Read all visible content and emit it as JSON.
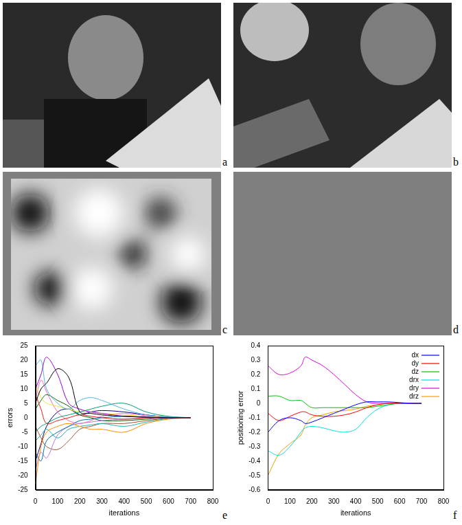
{
  "panels": [
    {
      "panel": "a"
    },
    {
      "panel": "b"
    },
    {
      "panel": "c"
    },
    {
      "panel": "d"
    }
  ],
  "chart_data": [
    {
      "panel": "e",
      "type": "line",
      "x_label": "iterations",
      "y_label": "errors",
      "x": [
        0,
        25,
        50,
        100,
        150,
        200,
        250,
        300,
        400,
        500,
        600,
        700
      ],
      "series": [
        {
          "color": "#000000",
          "values": [
            5,
            10,
            12,
            17,
            14,
            2,
            1.5,
            1,
            0.5,
            0.2,
            0,
            0
          ]
        },
        {
          "color": "#9400d3",
          "values": [
            10,
            15,
            21,
            15,
            5,
            3,
            2,
            1.5,
            0.5,
            0.2,
            0,
            0
          ]
        },
        {
          "color": "#ff8c00",
          "values": [
            -23,
            -10,
            -5,
            -3,
            -2,
            -3,
            -4,
            -4,
            -5,
            -2,
            -0.5,
            0
          ]
        },
        {
          "color": "#56b4e9",
          "values": [
            18,
            20,
            10,
            5,
            3,
            6,
            7,
            6,
            3,
            1,
            0.3,
            0
          ]
        },
        {
          "color": "#0072b2",
          "values": [
            -12,
            -15,
            -8,
            -5,
            -3,
            -1,
            -0.5,
            0,
            0.5,
            0.2,
            0,
            0
          ]
        },
        {
          "color": "#009e73",
          "values": [
            -5,
            -3,
            -2,
            0,
            1,
            2,
            3,
            4,
            5,
            2,
            0.5,
            0
          ]
        },
        {
          "color": "#e51e10",
          "values": [
            8,
            3,
            -2,
            -1,
            0,
            1,
            0.5,
            0,
            -0.5,
            0,
            0,
            0
          ]
        },
        {
          "color": "#b07cd8",
          "values": [
            -18,
            -12,
            -14,
            -6,
            -3,
            -2,
            -1.5,
            -1,
            -0.5,
            -0.2,
            0,
            0
          ]
        },
        {
          "color": "#f0e442",
          "values": [
            12,
            7,
            5,
            4,
            3,
            2,
            2,
            1.5,
            1,
            0.5,
            0,
            0
          ]
        },
        {
          "color": "#20b2aa",
          "values": [
            -8,
            -6,
            -4,
            -7,
            -4,
            -3,
            -2.5,
            -2,
            -3,
            -1.5,
            -0.3,
            0
          ]
        },
        {
          "color": "#006400",
          "values": [
            3,
            6,
            8,
            6,
            4,
            1,
            0,
            -1,
            -1,
            -0.5,
            0,
            0
          ]
        },
        {
          "color": "#a0522d",
          "values": [
            -3,
            -7,
            -10,
            -11,
            -8,
            -4,
            -3,
            -2,
            -2,
            -1,
            -0.2,
            0
          ]
        },
        {
          "color": "#ff69b4",
          "values": [
            6,
            13,
            9,
            2,
            -1,
            -2,
            -1,
            0.5,
            1.5,
            0.7,
            0.1,
            0
          ]
        },
        {
          "color": "#000080",
          "values": [
            -15,
            -9,
            -3,
            2,
            3,
            1,
            2,
            2.5,
            2,
            1,
            0.2,
            0
          ]
        }
      ],
      "xlim": [
        0,
        800
      ],
      "xticks": [
        0,
        100,
        200,
        300,
        400,
        500,
        600,
        700,
        800
      ],
      "ylim": [
        -25,
        25
      ],
      "yticks": [
        -25,
        -20,
        -15,
        -10,
        -5,
        0,
        5,
        10,
        15,
        20,
        25
      ],
      "grid": false
    },
    {
      "panel": "f",
      "type": "line",
      "x_label": "iterations",
      "y_label": "positioning error",
      "x": [
        0,
        50,
        100,
        150,
        170,
        200,
        250,
        300,
        350,
        400,
        450,
        500,
        550,
        600,
        650,
        700
      ],
      "series": [
        {
          "name": "dx",
          "color": "#0000ff",
          "values": [
            -0.2,
            -0.12,
            -0.1,
            -0.12,
            -0.14,
            -0.13,
            -0.1,
            -0.07,
            -0.04,
            -0.01,
            0.01,
            0.01,
            0.01,
            0.005,
            0,
            0
          ]
        },
        {
          "name": "dy",
          "color": "#ff0000",
          "values": [
            -0.07,
            -0.12,
            -0.09,
            -0.06,
            -0.06,
            -0.08,
            -0.09,
            -0.09,
            -0.08,
            -0.06,
            -0.03,
            -0.01,
            0,
            0,
            0,
            0
          ]
        },
        {
          "name": "dz",
          "color": "#00c000",
          "values": [
            0.05,
            0.05,
            0.02,
            0.02,
            0,
            -0.03,
            -0.03,
            -0.03,
            -0.03,
            -0.03,
            -0.03,
            -0.02,
            -0.01,
            0,
            0,
            0
          ]
        },
        {
          "name": "drx",
          "color": "#00e0e0",
          "values": [
            -0.33,
            -0.36,
            -0.3,
            -0.2,
            -0.17,
            -0.16,
            -0.17,
            -0.19,
            -0.2,
            -0.18,
            -0.1,
            -0.04,
            -0.01,
            0,
            0,
            0
          ]
        },
        {
          "name": "dry",
          "color": "#e000e0",
          "values": [
            0.26,
            0.2,
            0.21,
            0.26,
            0.32,
            0.3,
            0.26,
            0.2,
            0.13,
            0.06,
            0.01,
            0,
            0,
            0,
            0,
            0
          ]
        },
        {
          "name": "drz",
          "color": "#f0a000",
          "values": [
            -0.5,
            -0.35,
            -0.28,
            -0.22,
            -0.15,
            -0.1,
            -0.08,
            -0.06,
            -0.05,
            -0.04,
            -0.02,
            -0.01,
            0,
            0,
            0,
            0
          ]
        }
      ],
      "xlim": [
        0,
        800
      ],
      "xticks": [
        0,
        100,
        200,
        300,
        400,
        500,
        600,
        700,
        800
      ],
      "ylim": [
        -0.6,
        0.4
      ],
      "yticks": [
        -0.6,
        -0.5,
        -0.4,
        -0.3,
        -0.2,
        -0.1,
        0,
        0.1,
        0.2,
        0.3,
        0.4
      ],
      "grid": false,
      "legend": "top-right"
    }
  ]
}
